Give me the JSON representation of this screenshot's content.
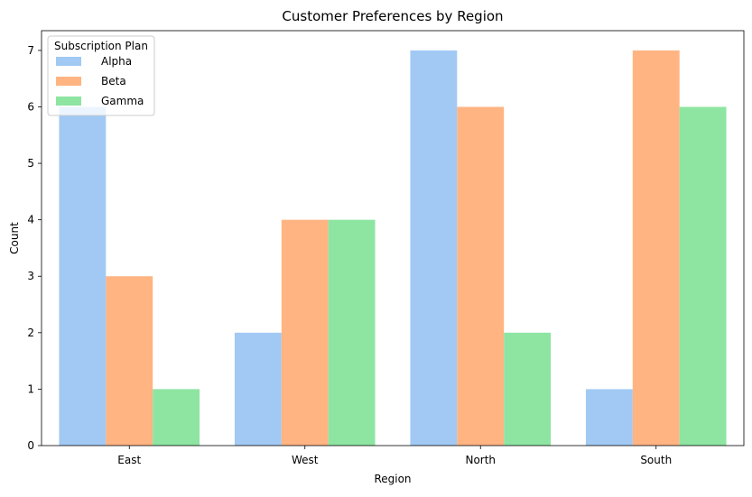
{
  "chart_data": {
    "type": "bar",
    "title": "Customer Preferences by Region",
    "xlabel": "Region",
    "ylabel": "Count",
    "categories": [
      "East",
      "West",
      "North",
      "South"
    ],
    "series": [
      {
        "name": "Alpha",
        "values": [
          6,
          2,
          7,
          1
        ],
        "color": "#a1c9f4"
      },
      {
        "name": "Beta",
        "values": [
          3,
          4,
          6,
          7
        ],
        "color": "#ffb482"
      },
      {
        "name": "Gamma",
        "values": [
          1,
          4,
          2,
          6
        ],
        "color": "#8de5a1"
      }
    ],
    "ylim": [
      0,
      7.35
    ],
    "yticks": [
      "0",
      "1",
      "2",
      "3",
      "4",
      "5",
      "6",
      "7"
    ],
    "grid": false,
    "legend": {
      "title": "Subscription Plan",
      "position": "top-left"
    }
  }
}
